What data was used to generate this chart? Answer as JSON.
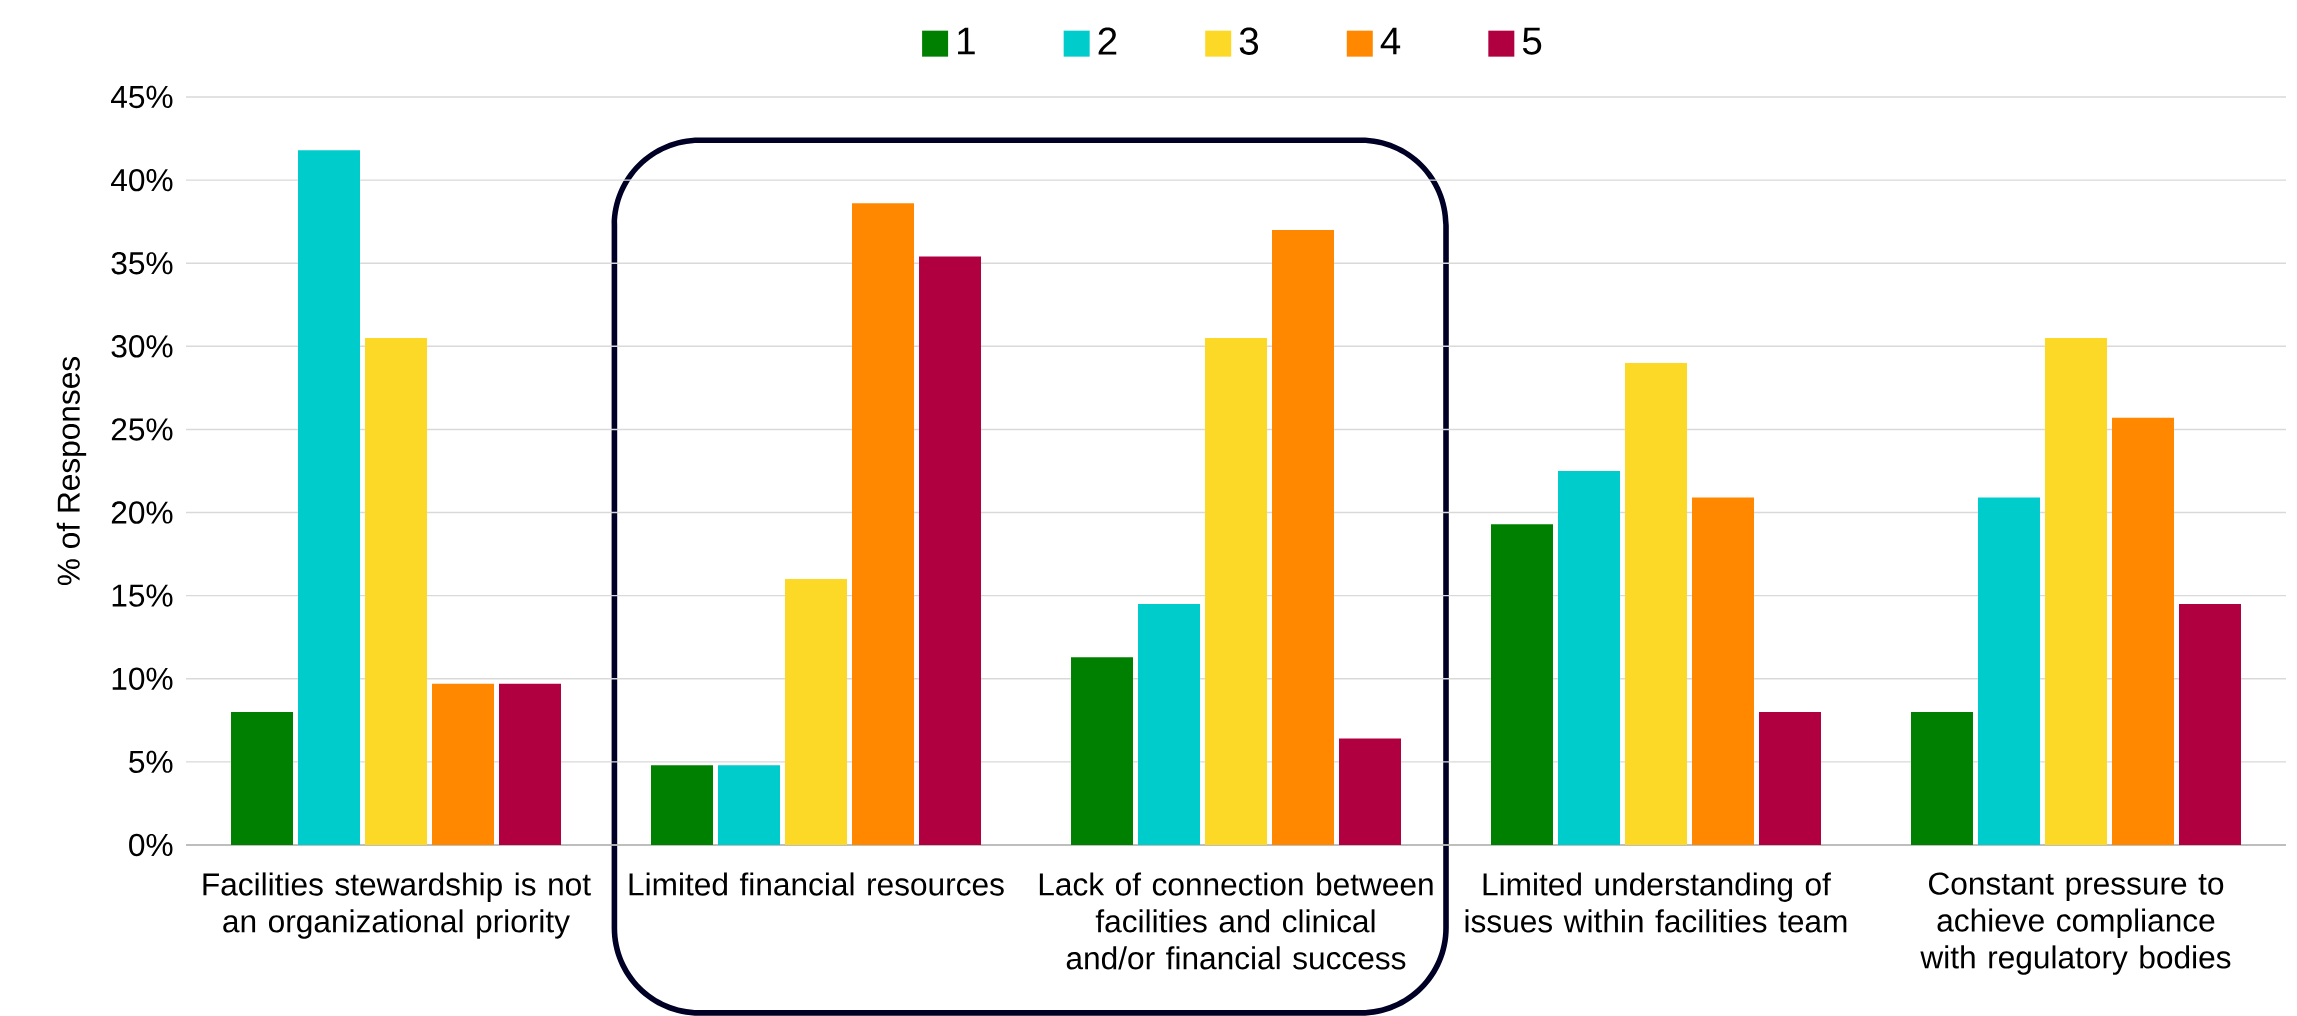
{
  "chart_data": {
    "type": "bar",
    "ylabel": "% of Responses",
    "categories": [
      "Facilities stewardship is not an organizational priority",
      "Limited financial resources",
      "Lack of connection between facilities and clinical and/or financial success",
      "Limited understanding of issues within facilities team",
      "Constant pressure to achieve compliance with regulatory bodies"
    ],
    "series": [
      {
        "name": "1",
        "color": "#008000",
        "values": [
          8.0,
          4.8,
          11.3,
          19.3,
          8.0
        ]
      },
      {
        "name": "2",
        "color": "#00cccc",
        "values": [
          41.8,
          4.8,
          14.5,
          22.5,
          20.9
        ]
      },
      {
        "name": "3",
        "color": "#fcd827",
        "values": [
          30.5,
          16.0,
          30.5,
          29.0,
          30.5
        ]
      },
      {
        "name": "4",
        "color": "#ff8800",
        "values": [
          9.7,
          38.6,
          37.0,
          20.9,
          25.7
        ]
      },
      {
        "name": "5",
        "color": "#b00040",
        "values": [
          9.7,
          35.4,
          6.4,
          8.0,
          14.5
        ]
      }
    ],
    "ylim": [
      0,
      45
    ],
    "yticks": [
      {
        "value": 0,
        "label": "0%"
      },
      {
        "value": 5,
        "label": "5%"
      },
      {
        "value": 10,
        "label": "10%"
      },
      {
        "value": 15,
        "label": "15%"
      },
      {
        "value": 20,
        "label": "20%"
      },
      {
        "value": 25,
        "label": "25%"
      },
      {
        "value": 30,
        "label": "30%"
      },
      {
        "value": 35,
        "label": "35%"
      },
      {
        "value": 40,
        "label": "40%"
      },
      {
        "value": 45,
        "label": "45%"
      }
    ],
    "grid": "y",
    "legend": "top"
  }
}
